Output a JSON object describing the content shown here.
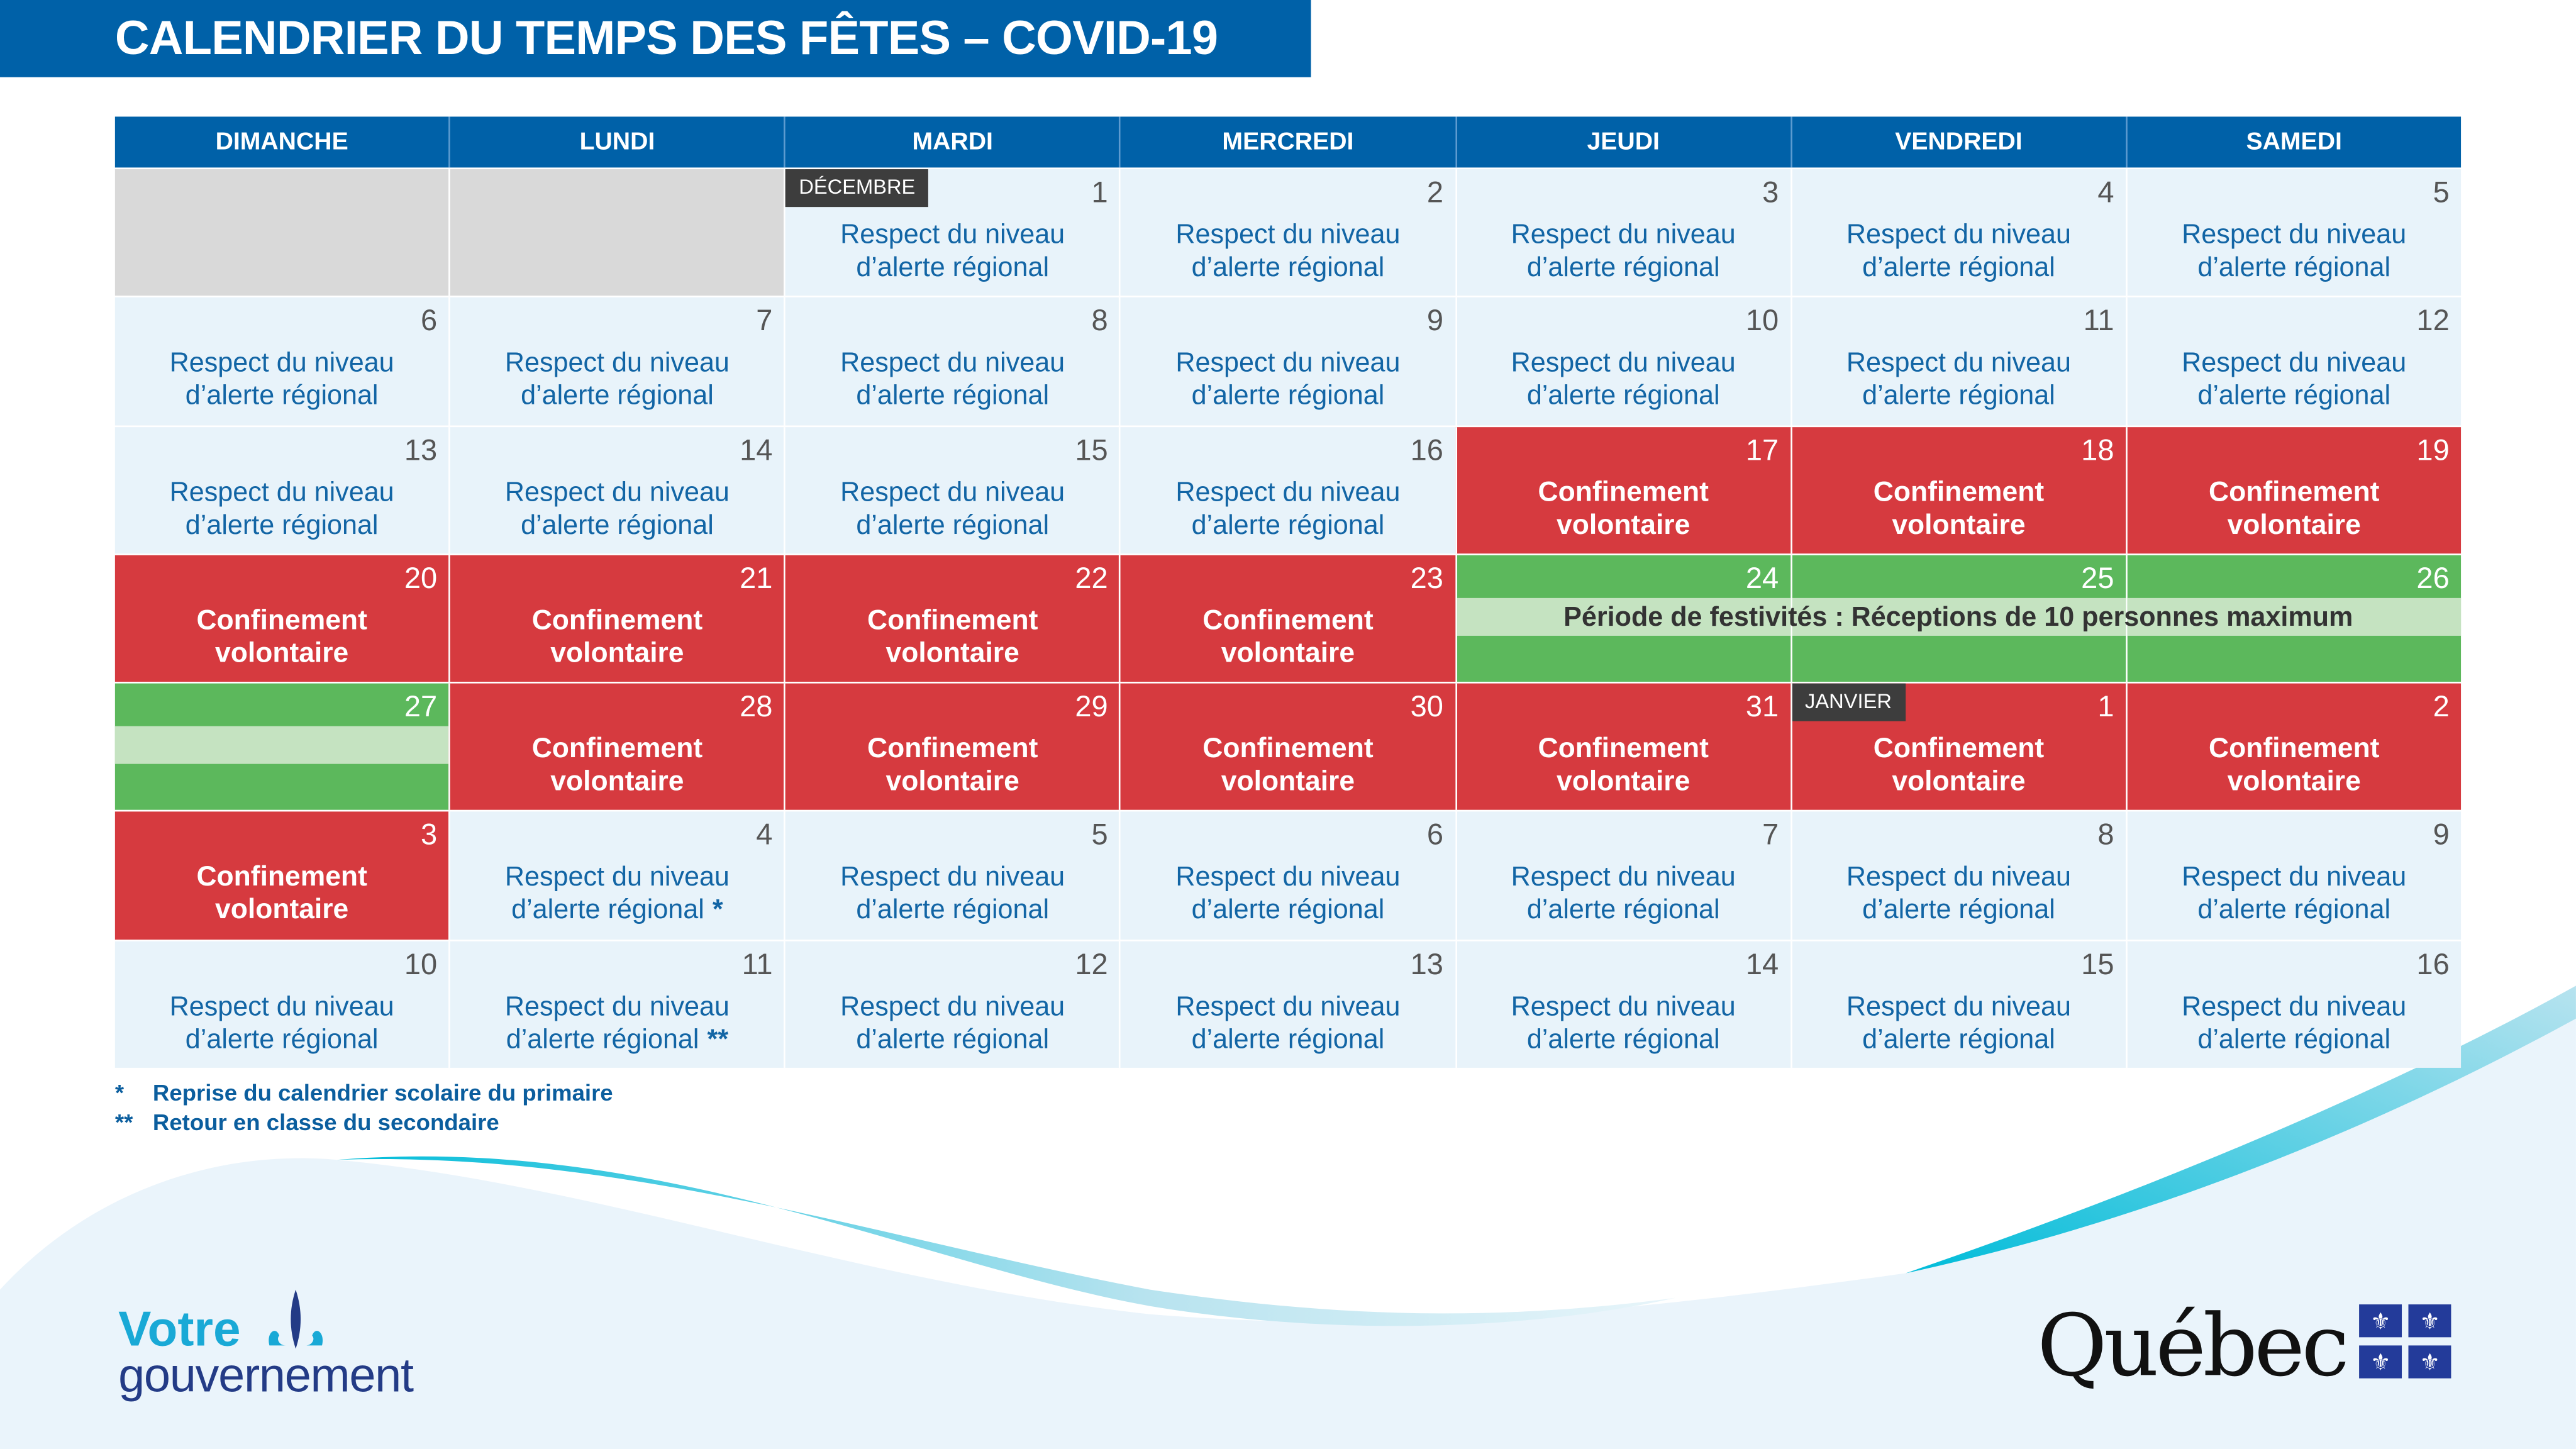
{
  "title": "CALENDRIER DU TEMPS DES FÊTES – COVID-19",
  "weekdays": [
    "DIMANCHE",
    "LUNDI",
    "MARDI",
    "MERCREDI",
    "JEUDI",
    "VENDREDI",
    "SAMEDI"
  ],
  "labels": {
    "respect": [
      "Respect du niveau",
      "d’alerte régional"
    ],
    "conf": [
      "Confinement",
      "volontaire"
    ]
  },
  "festivities_text": "Période de festivités : Réceptions de 10 personnes maximum",
  "weeks": [
    [
      {
        "type": "empty"
      },
      {
        "type": "empty"
      },
      {
        "day": "1",
        "type": "respect",
        "month": "DÉCEMBRE"
      },
      {
        "day": "2",
        "type": "respect"
      },
      {
        "day": "3",
        "type": "respect"
      },
      {
        "day": "4",
        "type": "respect"
      },
      {
        "day": "5",
        "type": "respect"
      }
    ],
    [
      {
        "day": "6",
        "type": "respect"
      },
      {
        "day": "7",
        "type": "respect"
      },
      {
        "day": "8",
        "type": "respect"
      },
      {
        "day": "9",
        "type": "respect"
      },
      {
        "day": "10",
        "type": "respect"
      },
      {
        "day": "11",
        "type": "respect"
      },
      {
        "day": "12",
        "type": "respect"
      }
    ],
    [
      {
        "day": "13",
        "type": "respect"
      },
      {
        "day": "14",
        "type": "respect"
      },
      {
        "day": "15",
        "type": "respect"
      },
      {
        "day": "16",
        "type": "respect"
      },
      {
        "day": "17",
        "type": "conf"
      },
      {
        "day": "18",
        "type": "conf"
      },
      {
        "day": "19",
        "type": "conf"
      }
    ],
    [
      {
        "day": "20",
        "type": "conf"
      },
      {
        "day": "21",
        "type": "conf"
      },
      {
        "day": "22",
        "type": "conf"
      },
      {
        "day": "23",
        "type": "conf"
      },
      {
        "day": "24",
        "type": "fest"
      },
      {
        "day": "25",
        "type": "fest"
      },
      {
        "day": "26",
        "type": "fest"
      }
    ],
    [
      {
        "day": "27",
        "type": "fest"
      },
      {
        "day": "28",
        "type": "conf"
      },
      {
        "day": "29",
        "type": "conf"
      },
      {
        "day": "30",
        "type": "conf"
      },
      {
        "day": "31",
        "type": "conf"
      },
      {
        "day": "1",
        "type": "conf",
        "month": "JANVIER"
      },
      {
        "day": "2",
        "type": "conf"
      }
    ],
    [
      {
        "day": "3",
        "type": "conf"
      },
      {
        "day": "4",
        "type": "respect",
        "note": "*"
      },
      {
        "day": "5",
        "type": "respect"
      },
      {
        "day": "6",
        "type": "respect"
      },
      {
        "day": "7",
        "type": "respect"
      },
      {
        "day": "8",
        "type": "respect"
      },
      {
        "day": "9",
        "type": "respect"
      }
    ],
    [
      {
        "day": "10",
        "type": "respect"
      },
      {
        "day": "11",
        "type": "respect",
        "note": "**"
      },
      {
        "day": "12",
        "type": "respect"
      },
      {
        "day": "13",
        "type": "respect"
      },
      {
        "day": "14",
        "type": "respect"
      },
      {
        "day": "15",
        "type": "respect"
      },
      {
        "day": "16",
        "type": "respect"
      }
    ]
  ],
  "footnotes": [
    {
      "mark": "*",
      "text": "Reprise du calendrier scolaire du primaire"
    },
    {
      "mark": "**",
      "text": "Retour en classe du secondaire"
    }
  ],
  "logo_left": {
    "line1": "Votre",
    "line2": "gouvernement"
  },
  "logo_right": {
    "text": "Québec",
    "flag_glyph": "⚜"
  },
  "colors": {
    "blue": "#0061a8",
    "red": "#d63a3f",
    "green": "#5cb85c",
    "light_green": "#c5e3c1",
    "light_blue": "#e8f3fa",
    "grey": "#d9d9d9"
  }
}
